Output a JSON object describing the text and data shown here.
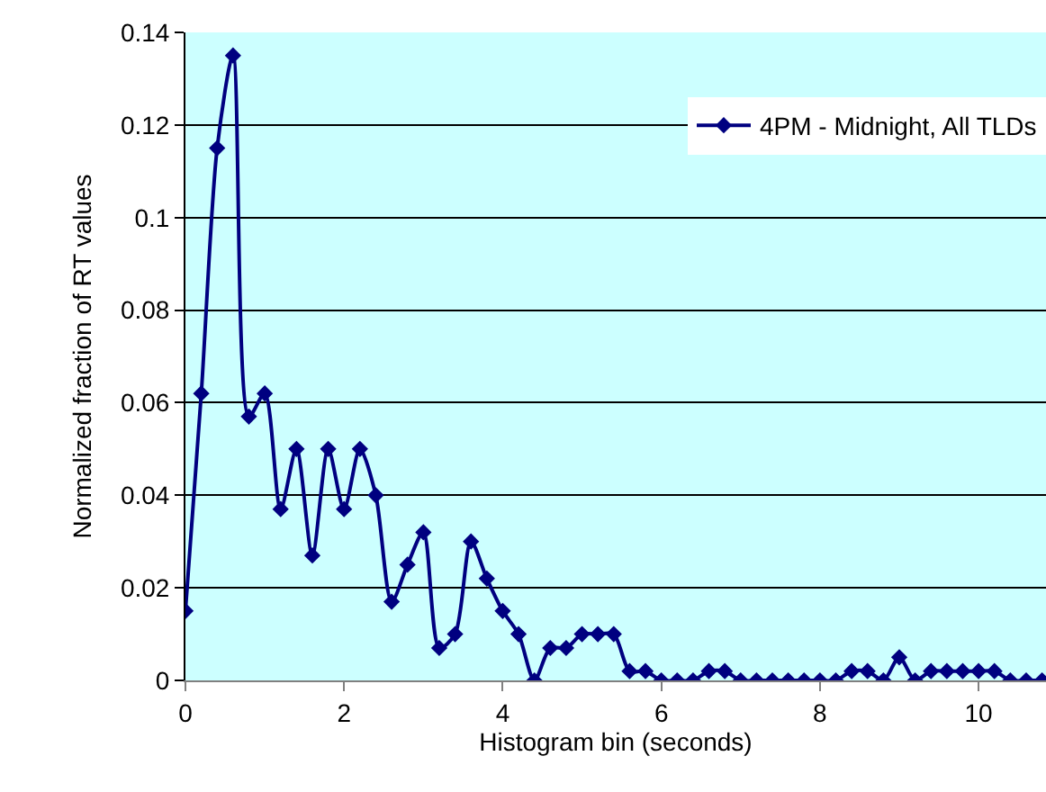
{
  "chart_data": {
    "type": "line",
    "xlabel": "Histogram bin (seconds)",
    "ylabel": "Normalized fraction of RT values",
    "x": [
      0,
      0.2,
      0.4,
      0.6,
      0.8,
      1.0,
      1.2,
      1.4,
      1.6,
      1.8,
      2.0,
      2.2,
      2.4,
      2.6,
      2.8,
      3.0,
      3.2,
      3.4,
      3.6,
      3.8,
      4.0,
      4.2,
      4.4,
      4.6,
      4.8,
      5.0,
      5.2,
      5.4,
      5.6,
      5.8,
      6.0,
      6.2,
      6.4,
      6.6,
      6.8,
      7.0,
      7.2,
      7.4,
      7.6,
      7.8,
      8.0,
      8.2,
      8.4,
      8.6,
      8.8,
      9.0,
      9.2,
      9.4,
      9.6,
      9.8,
      10.0,
      10.2,
      10.4,
      10.6,
      10.8
    ],
    "series": [
      {
        "name": "4PM - Midnight, All TLDs",
        "color": "#000080",
        "values": [
          0.015,
          0.062,
          0.115,
          0.135,
          0.057,
          0.062,
          0.037,
          0.05,
          0.027,
          0.05,
          0.037,
          0.05,
          0.04,
          0.017,
          0.025,
          0.032,
          0.007,
          0.01,
          0.03,
          0.022,
          0.015,
          0.01,
          0,
          0.007,
          0.007,
          0.01,
          0.01,
          0.01,
          0.002,
          0.002,
          0,
          0,
          0,
          0.002,
          0.002,
          0,
          0,
          0,
          0,
          0,
          0,
          0,
          0.002,
          0.002,
          0,
          0.005,
          0,
          0.002,
          0.002,
          0.002,
          0.002,
          0.002,
          0,
          0,
          0
        ]
      }
    ],
    "xlim": [
      0,
      10.85
    ],
    "xticks": [
      0,
      2,
      4,
      6,
      8,
      10
    ],
    "ylim": [
      0,
      0.14
    ],
    "yticks": [
      0,
      0.02,
      0.04,
      0.06,
      0.08,
      0.1,
      0.12,
      0.14
    ],
    "grid": "y",
    "legend": "top right",
    "marker": "diamond",
    "line_style": "solid"
  }
}
